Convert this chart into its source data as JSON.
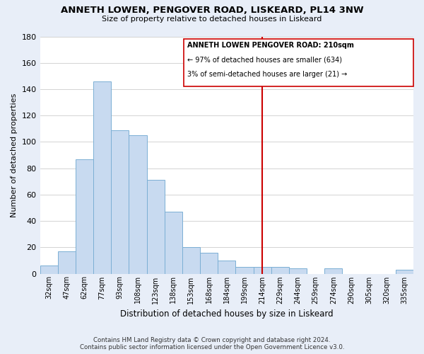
{
  "title": "ANNETH LOWEN, PENGOVER ROAD, LISKEARD, PL14 3NW",
  "subtitle": "Size of property relative to detached houses in Liskeard",
  "xlabel": "Distribution of detached houses by size in Liskeard",
  "ylabel": "Number of detached properties",
  "bar_labels": [
    "32sqm",
    "47sqm",
    "62sqm",
    "77sqm",
    "93sqm",
    "108sqm",
    "123sqm",
    "138sqm",
    "153sqm",
    "168sqm",
    "184sqm",
    "199sqm",
    "214sqm",
    "229sqm",
    "244sqm",
    "259sqm",
    "274sqm",
    "290sqm",
    "305sqm",
    "320sqm",
    "335sqm"
  ],
  "bar_values": [
    6,
    17,
    87,
    146,
    109,
    105,
    71,
    47,
    20,
    16,
    10,
    5,
    5,
    5,
    4,
    0,
    4,
    0,
    0,
    0,
    3
  ],
  "bar_color": "#c8daf0",
  "bar_edge_color": "#7bafd4",
  "ylim": [
    0,
    180
  ],
  "yticks": [
    0,
    20,
    40,
    60,
    80,
    100,
    120,
    140,
    160,
    180
  ],
  "vline_color": "#cc0000",
  "annotation_title": "ANNETH LOWEN PENGOVER ROAD: 210sqm",
  "annotation_line1": "← 97% of detached houses are smaller (634)",
  "annotation_line2": "3% of semi-detached houses are larger (21) →",
  "annotation_box_color": "#cc0000",
  "footer_line1": "Contains HM Land Registry data © Crown copyright and database right 2024.",
  "footer_line2": "Contains public sector information licensed under the Open Government Licence v3.0.",
  "bg_color": "#e8eef8",
  "plot_bg_color": "#ffffff",
  "grid_color": "#cccccc"
}
